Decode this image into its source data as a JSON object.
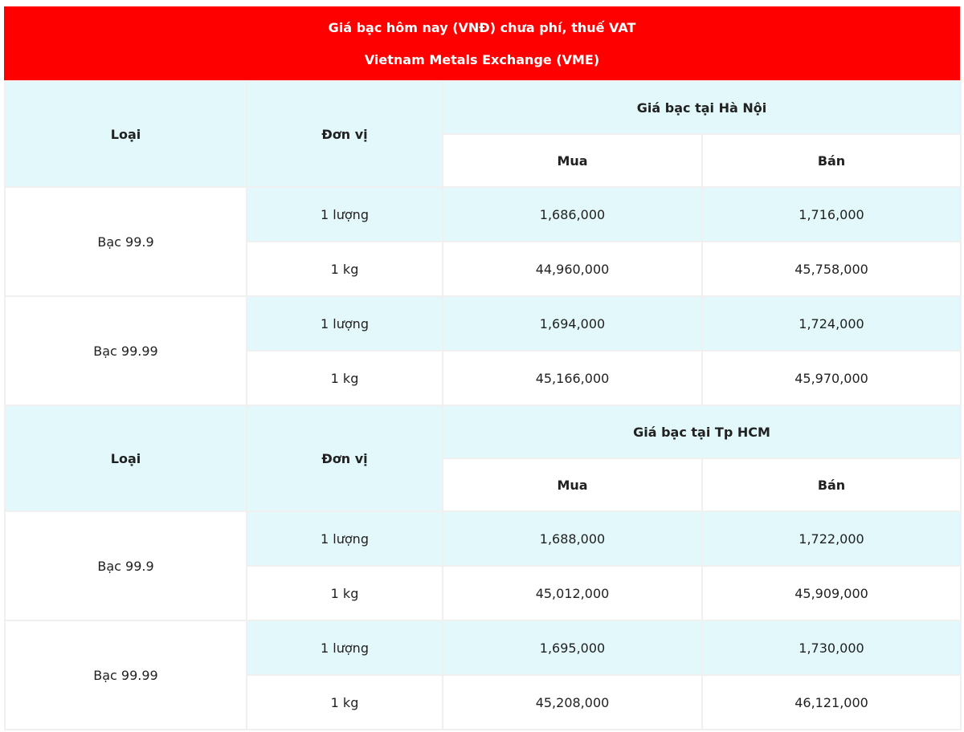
{
  "banner": {
    "line1": "Giá bạc hôm nay (VNĐ) chưa phí, thuế VAT",
    "line2": "Vietnam Metals Exchange (VME)"
  },
  "colors": {
    "banner_bg": "#fe0000",
    "banner_text": "#ffffff",
    "highlight_bg": "#e2f8fa",
    "border": "#f0f0f0",
    "text": "#212121"
  },
  "table": {
    "headers": {
      "type": "Loại",
      "unit": "Đơn vị",
      "buy": "Mua",
      "sell": "Bán"
    },
    "sections": [
      {
        "title": "Giá bạc tại Hà Nội",
        "groups": [
          {
            "type": "Bạc 99.9",
            "rows": [
              {
                "unit": "1 lượng",
                "buy": "1,686,000",
                "sell": "1,716,000"
              },
              {
                "unit": "1 kg",
                "buy": "44,960,000",
                "sell": "45,758,000"
              }
            ]
          },
          {
            "type": "Bạc 99.99",
            "rows": [
              {
                "unit": "1 lượng",
                "buy": "1,694,000",
                "sell": "1,724,000"
              },
              {
                "unit": "1 kg",
                "buy": "45,166,000",
                "sell": "45,970,000"
              }
            ]
          }
        ]
      },
      {
        "title": "Giá bạc tại Tp HCM",
        "groups": [
          {
            "type": "Bạc 99.9",
            "rows": [
              {
                "unit": "1 lượng",
                "buy": "1,688,000",
                "sell": "1,722,000"
              },
              {
                "unit": "1 kg",
                "buy": "45,012,000",
                "sell": "45,909,000"
              }
            ]
          },
          {
            "type": "Bạc 99.99",
            "rows": [
              {
                "unit": "1 lượng",
                "buy": "1,695,000",
                "sell": "1,730,000"
              },
              {
                "unit": "1 kg",
                "buy": "45,208,000",
                "sell": "46,121,000"
              }
            ]
          }
        ]
      }
    ]
  }
}
